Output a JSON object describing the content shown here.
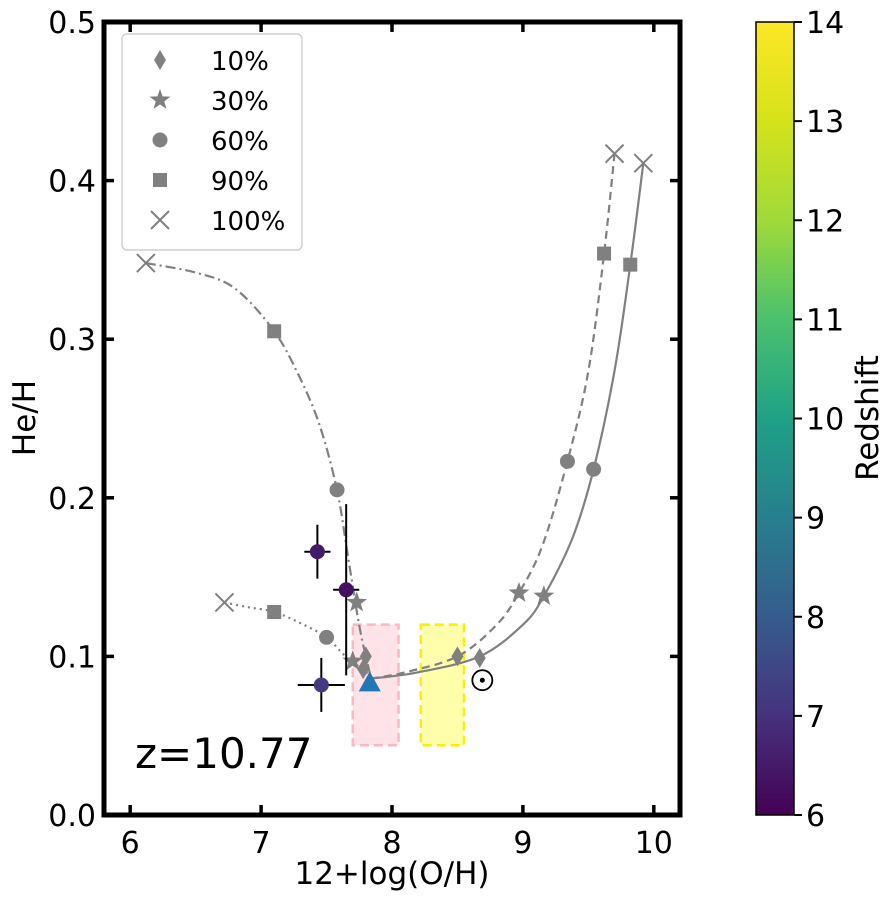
{
  "chart_data": {
    "type": "scatter",
    "xlabel": "12+log(O/H)",
    "ylabel": "He/H",
    "xlim": [
      5.8,
      10.2
    ],
    "ylim": [
      0.0,
      0.5
    ],
    "xticks": [
      6,
      7,
      8,
      9,
      10
    ],
    "yticks": [
      0.0,
      0.1,
      0.2,
      0.3,
      0.4,
      0.5
    ],
    "xtick_labels": [
      "6",
      "7",
      "8",
      "9",
      "10"
    ],
    "ytick_labels": [
      "0.0",
      "0.1",
      "0.2",
      "0.3",
      "0.4",
      "0.5"
    ],
    "grid": false,
    "legend_position": "top-left",
    "annotation": "z=10.77",
    "legend": [
      {
        "label": "10%",
        "marker": "thin-diamond"
      },
      {
        "label": "30%",
        "marker": "star"
      },
      {
        "label": "60%",
        "marker": "circle"
      },
      {
        "label": "90%",
        "marker": "square"
      },
      {
        "label": "100%",
        "marker": "x"
      }
    ],
    "tracks": [
      {
        "style": "dashdot",
        "color": "#808080",
        "curve": [
          [
            6.12,
            0.348
          ],
          [
            6.5,
            0.342
          ],
          [
            6.8,
            0.332
          ],
          [
            7.1,
            0.305
          ],
          [
            7.3,
            0.275
          ],
          [
            7.45,
            0.245
          ],
          [
            7.58,
            0.205
          ],
          [
            7.66,
            0.165
          ],
          [
            7.72,
            0.134
          ],
          [
            7.76,
            0.115
          ],
          [
            7.8,
            0.1
          ],
          [
            7.84,
            0.086
          ]
        ],
        "markers": [
          {
            "frac": "100%",
            "x": 6.12,
            "y": 0.348
          },
          {
            "frac": "90%",
            "x": 7.1,
            "y": 0.305
          },
          {
            "frac": "60%",
            "x": 7.58,
            "y": 0.205
          },
          {
            "frac": "30%",
            "x": 7.73,
            "y": 0.134
          },
          {
            "frac": "10%",
            "x": 7.8,
            "y": 0.1
          }
        ]
      },
      {
        "style": "dotted",
        "color": "#808080",
        "curve": [
          [
            6.72,
            0.134
          ],
          [
            6.9,
            0.131
          ],
          [
            7.1,
            0.128
          ],
          [
            7.3,
            0.121
          ],
          [
            7.5,
            0.112
          ],
          [
            7.62,
            0.102
          ],
          [
            7.7,
            0.096
          ],
          [
            7.78,
            0.092
          ],
          [
            7.84,
            0.086
          ]
        ],
        "markers": [
          {
            "frac": "100%",
            "x": 6.72,
            "y": 0.134
          },
          {
            "frac": "90%",
            "x": 7.1,
            "y": 0.128
          },
          {
            "frac": "60%",
            "x": 7.5,
            "y": 0.112
          },
          {
            "frac": "30%",
            "x": 7.7,
            "y": 0.097
          },
          {
            "frac": "10%",
            "x": 7.78,
            "y": 0.092
          }
        ]
      },
      {
        "style": "dashed",
        "color": "#808080",
        "curve": [
          [
            7.84,
            0.086
          ],
          [
            8.1,
            0.09
          ],
          [
            8.5,
            0.1
          ],
          [
            8.8,
            0.12
          ],
          [
            8.97,
            0.14
          ],
          [
            9.15,
            0.17
          ],
          [
            9.34,
            0.223
          ],
          [
            9.5,
            0.28
          ],
          [
            9.62,
            0.354
          ],
          [
            9.7,
            0.417
          ]
        ],
        "markers": [
          {
            "frac": "10%",
            "x": 8.5,
            "y": 0.1
          },
          {
            "frac": "30%",
            "x": 8.97,
            "y": 0.14
          },
          {
            "frac": "60%",
            "x": 9.34,
            "y": 0.223
          },
          {
            "frac": "90%",
            "x": 9.62,
            "y": 0.354
          },
          {
            "frac": "100%",
            "x": 9.7,
            "y": 0.417
          }
        ]
      },
      {
        "style": "solid",
        "color": "#808080",
        "curve": [
          [
            7.84,
            0.086
          ],
          [
            8.2,
            0.09
          ],
          [
            8.67,
            0.1
          ],
          [
            9.0,
            0.12
          ],
          [
            9.16,
            0.138
          ],
          [
            9.38,
            0.175
          ],
          [
            9.54,
            0.218
          ],
          [
            9.7,
            0.28
          ],
          [
            9.82,
            0.347
          ],
          [
            9.92,
            0.411
          ]
        ],
        "markers": [
          {
            "frac": "10%",
            "x": 8.67,
            "y": 0.099
          },
          {
            "frac": "30%",
            "x": 9.16,
            "y": 0.138
          },
          {
            "frac": "60%",
            "x": 9.54,
            "y": 0.218
          },
          {
            "frac": "90%",
            "x": 9.82,
            "y": 0.347
          },
          {
            "frac": "100%",
            "x": 9.92,
            "y": 0.411
          }
        ]
      }
    ],
    "observations": [
      {
        "x": 7.43,
        "y": 0.166,
        "xerr": 0.1,
        "yerr": 0.017,
        "z": 6.5
      },
      {
        "x": 7.65,
        "y": 0.142,
        "xerr": 0.1,
        "yerr": [
          0.054,
          0.054
        ],
        "z": 6.3
      },
      {
        "x": 7.46,
        "y": 0.082,
        "xerr": 0.18,
        "yerr": 0.017,
        "z": 7.2
      }
    ],
    "highlight": {
      "x": 7.83,
      "y": 0.083,
      "marker": "triangle",
      "color": "#1f77b4"
    },
    "solar_symbol": {
      "x": 8.69,
      "y": 0.085
    },
    "regions": [
      {
        "x0": 7.7,
        "x1": 8.05,
        "y0": 0.044,
        "y1": 0.12,
        "fill": "#ffc0cb",
        "edge": "#ffb6c1"
      },
      {
        "x0": 8.22,
        "x1": 8.55,
        "y0": 0.044,
        "y1": 0.12,
        "fill": "#ffff66",
        "edge": "#ffee00"
      }
    ],
    "colorbar": {
      "label": "Redshift",
      "range": [
        6,
        14
      ],
      "ticks": [
        6,
        7,
        8,
        9,
        10,
        11,
        12,
        13,
        14
      ],
      "tick_labels": [
        "6",
        "7",
        "8",
        "9",
        "10",
        "11",
        "12",
        "13",
        "14"
      ],
      "colormap": "viridis"
    }
  }
}
